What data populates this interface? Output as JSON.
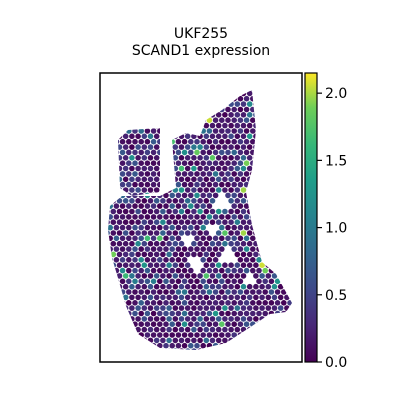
{
  "chart_data": {
    "type": "scatter",
    "title_line1": "UKF255",
    "title_line2": "SCAND1 expression",
    "xlabel": "",
    "ylabel": "",
    "grid": false,
    "colormap": "viridis",
    "colorbar": {
      "range": [
        0.0,
        2.15
      ],
      "ticks": [
        0.0,
        0.5,
        1.0,
        1.5,
        2.0
      ],
      "tick_labels": [
        "0.0",
        "0.5",
        "1.0",
        "1.5",
        "2.0"
      ]
    },
    "spot_value_summary": {
      "typical_range": [
        0.0,
        1.0
      ],
      "max_visible": 2.1
    }
  }
}
